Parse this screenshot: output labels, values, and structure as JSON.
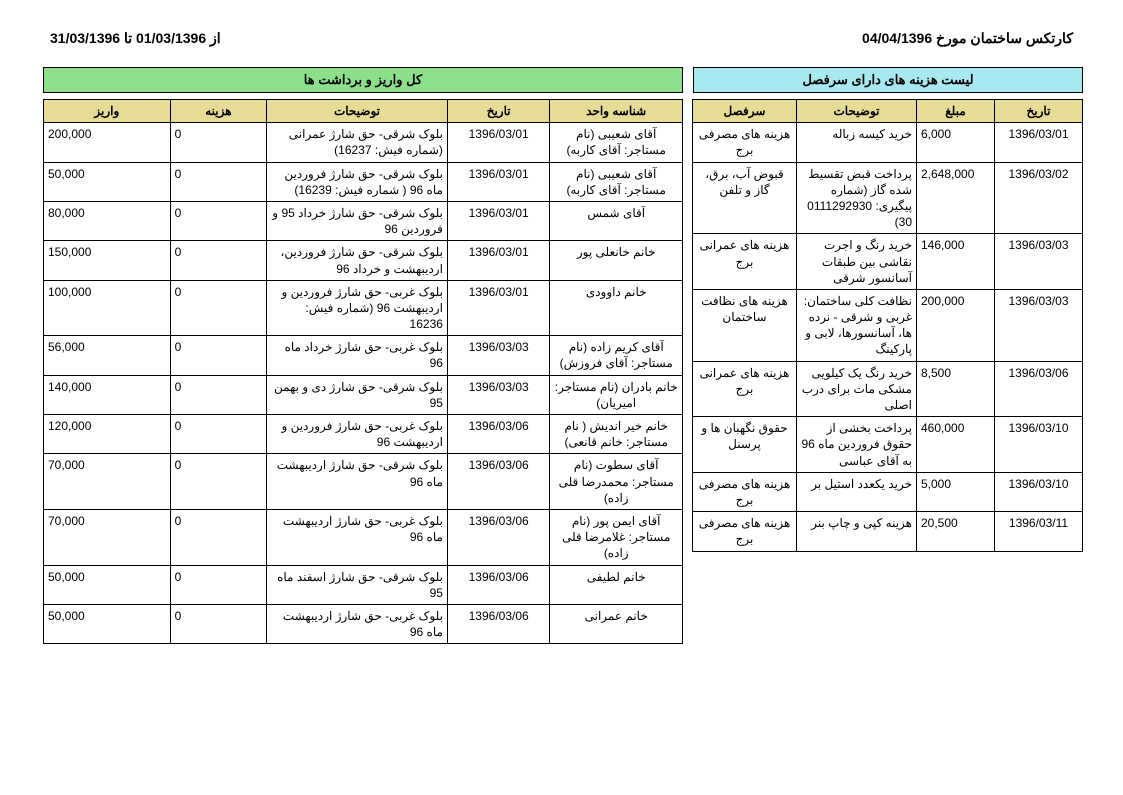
{
  "header": {
    "title": "کارتکس ساختمان مورخ  04/04/1396",
    "range": "از 01/03/1396 تا 31/03/1396"
  },
  "colors": {
    "rightTitleBg": "#a8e8f0",
    "leftTitleBg": "#8ce08c",
    "headerBg": "#e6dc96"
  },
  "rightTable": {
    "title": "لیست هزینه های دارای سرفصل",
    "columns": [
      "تاریخ",
      "مبلغ",
      "توضیحات",
      "سرفصل"
    ],
    "rows": [
      {
        "date": "1396/03/01",
        "amount": "6,000",
        "desc": "خرید کیسه زباله",
        "cat": "هزینه های مصرفی برج"
      },
      {
        "date": "1396/03/02",
        "amount": "2,648,000",
        "desc": "پرداخت قبض تقسیط شده گاز (شماره پیگیری: 0111292930 30)",
        "cat": "قبوض آب، برق، گاز و تلفن"
      },
      {
        "date": "1396/03/03",
        "amount": "146,000",
        "desc": "خرید رنگ و اجرت نقاشی بین طبقات آسانسور شرقی",
        "cat": "هزینه های عمرانی برج"
      },
      {
        "date": "1396/03/03",
        "amount": "200,000",
        "desc": "نظافت کلی ساختمان: غربی و شرقی - نرده ها، آسانسورها، لابی و پارکینگ",
        "cat": "هزینه های نظافت ساختمان"
      },
      {
        "date": "1396/03/06",
        "amount": "8,500",
        "desc": "خرید رنگ یک کیلویی مشکی مات برای درب اصلی",
        "cat": "هزینه های عمرانی برج"
      },
      {
        "date": "1396/03/10",
        "amount": "460,000",
        "desc": "پرداخت بخشی از حقوق فروردین ماه 96 به آقای عباسی",
        "cat": "حقوق نگهبان ها و پرسنل"
      },
      {
        "date": "1396/03/10",
        "amount": "5,000",
        "desc": "خرید یکعدد استیل بر",
        "cat": "هزینه های مصرفی برج"
      },
      {
        "date": "1396/03/11",
        "amount": "20,500",
        "desc": "هزینه کپی و چاپ بنر",
        "cat": "هزینه های مصرفی برج"
      }
    ]
  },
  "leftTable": {
    "title": "کل واریز و برداشت ها",
    "columns": [
      "شناسه واحد",
      "تاریخ",
      "توضیحات",
      "هزینه",
      "واریز"
    ],
    "rows": [
      {
        "unit": "آقای شعیبی (نام مستاجر: آقای کاربه)",
        "date": "1396/03/01",
        "desc": "بلوک شرقی- حق شارژ عمرانی (شماره فیش: 16237)",
        "cost": "0",
        "dep": "200,000"
      },
      {
        "unit": "آقای شعیبی (نام مستاجر: آقای کاربه)",
        "date": "1396/03/01",
        "desc": "بلوک شرقی- حق شارژ فروردین ماه 96 ( شماره فیش: 16239)",
        "cost": "0",
        "dep": "50,000"
      },
      {
        "unit": "آقای شمس",
        "date": "1396/03/01",
        "desc": "بلوک شرقی- حق شارژ خرداد 95 و فروردین 96",
        "cost": "0",
        "dep": "80,000"
      },
      {
        "unit": "خانم خانعلی پور",
        "date": "1396/03/01",
        "desc": "بلوک شرقی- حق شارژ فروردین، اردیبهشت و خرداد 96",
        "cost": "0",
        "dep": "150,000"
      },
      {
        "unit": "خانم داوودی",
        "date": "1396/03/01",
        "desc": "بلوک غربی- حق شارژ فروردین و اردیبهشت 96 (شماره فیش: 16236",
        "cost": "0",
        "dep": "100,000"
      },
      {
        "unit": "آقای کریم زاده (نام مستاجر: آقای فروزش)",
        "date": "1396/03/03",
        "desc": "بلوک غربی- حق شارژ خرداد ماه 96",
        "cost": "0",
        "dep": "56,000"
      },
      {
        "unit": "خانم بادران (نام مستاجر: امیریان)",
        "date": "1396/03/03",
        "desc": "بلوک شرقی- حق شارژ دی و بهمن 95",
        "cost": "0",
        "dep": "140,000"
      },
      {
        "unit": "خانم خیر اندیش ( نام مستاجر: خانم قانعی)",
        "date": "1396/03/06",
        "desc": "بلوک غربی- حق شارژ فروردین و اردیبهشت 96",
        "cost": "0",
        "dep": "120,000"
      },
      {
        "unit": "آقای سطوت (نام مستاجر: محمدرضا قلی زاده)",
        "date": "1396/03/06",
        "desc": "بلوک شرقی- حق شارژ اردیبهشت ماه 96",
        "cost": "0",
        "dep": "70,000"
      },
      {
        "unit": "آقای ایمن پور (نام مستاجر: غلامرضا قلی زاده)",
        "date": "1396/03/06",
        "desc": "بلوک غربی- حق شارژ اردیبهشت ماه 96",
        "cost": "0",
        "dep": "70,000"
      },
      {
        "unit": "خانم لطیفی",
        "date": "1396/03/06",
        "desc": "بلوک شرقی- حق شارژ اسفند ماه 95",
        "cost": "0",
        "dep": "50,000"
      },
      {
        "unit": "خانم عمرانی",
        "date": "1396/03/06",
        "desc": "بلوک غربی- حق شارژ اردیبهشت ماه 96",
        "cost": "0",
        "dep": "50,000"
      }
    ]
  }
}
